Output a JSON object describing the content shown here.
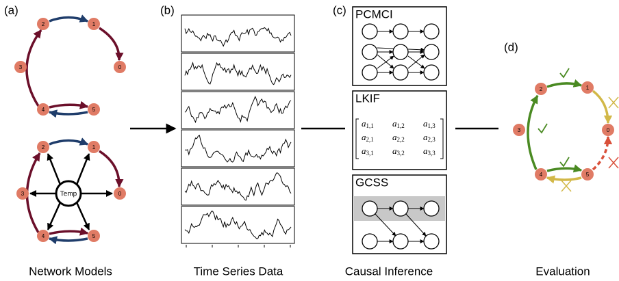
{
  "panels": [
    {
      "label": "(a)",
      "caption": "Network Models"
    },
    {
      "label": "(b)",
      "caption": "Time Series Data"
    },
    {
      "label": "(c)",
      "caption": "Causal Inference"
    },
    {
      "label": "(d)",
      "caption": "Evaluation"
    }
  ],
  "network_top": {
    "nodes": [
      "0",
      "1",
      "2",
      "3",
      "4",
      "5"
    ]
  },
  "network_bottom": {
    "nodes": [
      "0",
      "1",
      "2",
      "3",
      "4",
      "5"
    ],
    "hub": "Temp"
  },
  "methods": [
    {
      "name": "PCMCI"
    },
    {
      "name": "LKIF",
      "matrix_symbol": "a",
      "matrix": [
        [
          "1,1",
          "1,2",
          "1,3"
        ],
        [
          "2,1",
          "2,2",
          "2,3"
        ],
        [
          "3,1",
          "3,2",
          "3,3"
        ]
      ]
    },
    {
      "name": "GCSS"
    }
  ],
  "evaluation": {
    "nodes": [
      "0",
      "1",
      "2",
      "3",
      "4",
      "5"
    ]
  }
}
